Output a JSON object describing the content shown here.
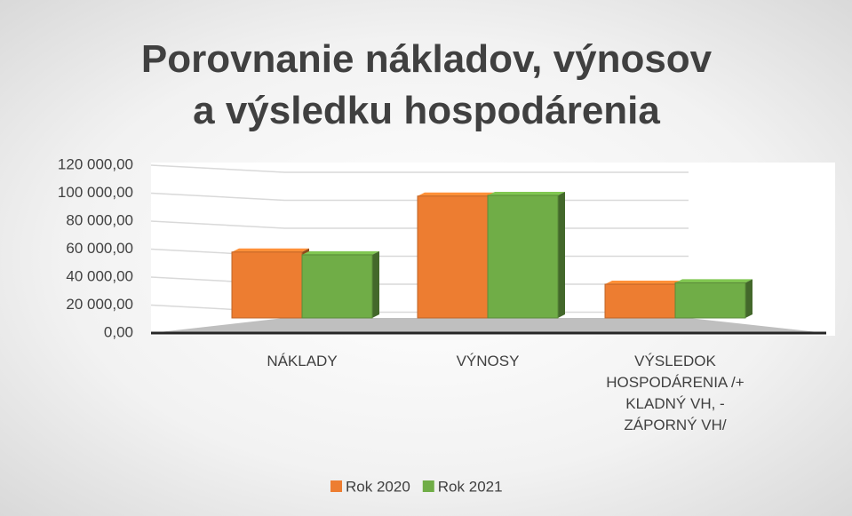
{
  "chart_data": {
    "type": "bar3d",
    "title": "Porovnanie nákladov, výnosov a výsledku hospodárenia",
    "categories": [
      "NÁKLADY",
      "VÝNOSY",
      "VÝSLEDOK HOSPODÁRENIA /+ KLADNÝ VH, - ZÁPORNÝ VH/"
    ],
    "series": [
      {
        "name": "Rok 2020",
        "color": "#ed7d31",
        "values": [
          63000,
          103000,
          40000
        ]
      },
      {
        "name": "Rok 2021",
        "color": "#70ad47",
        "values": [
          61000,
          103500,
          41000
        ]
      }
    ],
    "ylim": [
      0,
      120000
    ],
    "yticks": [
      {
        "value": 0,
        "label": "0,00"
      },
      {
        "value": 20000,
        "label": "20 000,00"
      },
      {
        "value": 40000,
        "label": "40 000,00"
      },
      {
        "value": 60000,
        "label": "60 000,00"
      },
      {
        "value": 80000,
        "label": "80 000,00"
      },
      {
        "value": 100000,
        "label": "100 000,00"
      },
      {
        "value": 120000,
        "label": "120 000,00"
      }
    ],
    "grid": true,
    "legend": "bottom"
  }
}
